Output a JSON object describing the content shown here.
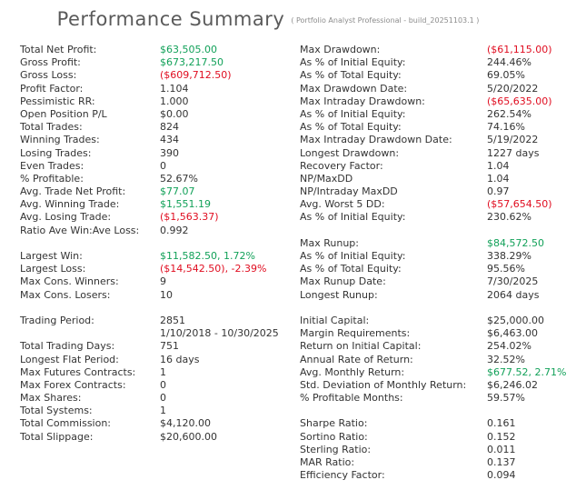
{
  "header": {
    "title": "Performance Summary",
    "subtitle": "( Portfolio Analyst Professional - build_20251103.1 )"
  },
  "colors": {
    "positive": "#12a159",
    "negative": "#e00d20",
    "text": "#333333",
    "title": "#5a5a5a"
  },
  "rows": [
    {
      "l": [
        "Total Net Profit:",
        "$63,505.00",
        "pos"
      ],
      "r": [
        "Max Drawdown:",
        "($61,115.00)",
        "neg"
      ]
    },
    {
      "l": [
        "Gross Profit:",
        "$673,217.50",
        "pos"
      ],
      "r": [
        "As % of Initial Equity:",
        "244.46%"
      ]
    },
    {
      "l": [
        "Gross Loss:",
        "($609,712.50)",
        "neg"
      ],
      "r": [
        "As % of Total Equity:",
        "69.05%"
      ]
    },
    {
      "l": [
        "Profit Factor:",
        "1.104"
      ],
      "r": [
        "Max Drawdown Date:",
        "5/20/2022"
      ]
    },
    {
      "l": [
        "Pessimistic RR:",
        "1.000"
      ],
      "r": [
        "Max Intraday Drawdown:",
        "($65,635.00)",
        "neg"
      ]
    },
    {
      "l": [
        "Open Position P/L",
        "$0.00"
      ],
      "r": [
        "As % of Initial Equity:",
        "262.54%"
      ]
    },
    {
      "l": [
        "Total Trades:",
        "824"
      ],
      "r": [
        "As % of Total Equity:",
        "74.16%"
      ]
    },
    {
      "l": [
        "Winning Trades:",
        "434"
      ],
      "r": [
        "Max Intraday Drawdown Date:",
        "5/19/2022"
      ]
    },
    {
      "l": [
        "Losing Trades:",
        "390"
      ],
      "r": [
        "Longest Drawdown:",
        "1227 days"
      ]
    },
    {
      "l": [
        "Even Trades:",
        "0"
      ],
      "r": [
        "Recovery Factor:",
        "1.04"
      ]
    },
    {
      "l": [
        "% Profitable:",
        "52.67%"
      ],
      "r": [
        "NP/MaxDD",
        "1.04"
      ]
    },
    {
      "l": [
        "Avg. Trade Net Profit:",
        "$77.07",
        "pos"
      ],
      "r": [
        "NP/Intraday MaxDD",
        "0.97"
      ]
    },
    {
      "l": [
        "Avg. Winning Trade:",
        "$1,551.19",
        "pos"
      ],
      "r": [
        "Avg. Worst 5 DD:",
        "($57,654.50)",
        "neg"
      ]
    },
    {
      "l": [
        "Avg. Losing Trade:",
        "($1,563.37)",
        "neg"
      ],
      "r": [
        "As % of Initial Equity:",
        "230.62%"
      ]
    },
    {
      "l": [
        "Ratio Ave Win:Ave Loss:",
        "0.992"
      ],
      "r": [
        "",
        ""
      ]
    },
    {
      "l": [
        "",
        ""
      ],
      "r": [
        "Max Runup:",
        "$84,572.50",
        "pos"
      ]
    },
    {
      "l": [
        "Largest Win:",
        "$11,582.50, 1.72%",
        "pos"
      ],
      "r": [
        "As % of Initial Equity:",
        "338.29%"
      ]
    },
    {
      "l": [
        "Largest Loss:",
        "($14,542.50), -2.39%",
        "neg"
      ],
      "r": [
        "As % of Total Equity:",
        "95.56%"
      ]
    },
    {
      "l": [
        "Max Cons. Winners:",
        "9"
      ],
      "r": [
        "Max Runup Date:",
        "7/30/2025"
      ]
    },
    {
      "l": [
        "Max Cons. Losers:",
        "10"
      ],
      "r": [
        "Longest Runup:",
        "2064 days"
      ]
    },
    {
      "l": [
        "",
        ""
      ],
      "r": [
        "",
        ""
      ]
    },
    {
      "l": [
        "Trading Period:",
        "2851"
      ],
      "r": [
        "Initial Capital:",
        "$25,000.00"
      ]
    },
    {
      "l": [
        "",
        "1/10/2018 - 10/30/2025"
      ],
      "r": [
        "Margin Requirements:",
        "$6,463.00"
      ]
    },
    {
      "l": [
        "Total Trading Days:",
        "751"
      ],
      "r": [
        "Return on Initial Capital:",
        "254.02%"
      ]
    },
    {
      "l": [
        "Longest Flat Period:",
        "16 days"
      ],
      "r": [
        "Annual Rate of Return:",
        "32.52%"
      ]
    },
    {
      "l": [
        "Max Futures Contracts:",
        "1"
      ],
      "r": [
        "Avg. Monthly Return:",
        "$677.52, 2.71%",
        "pos"
      ]
    },
    {
      "l": [
        "Max Forex Contracts:",
        "0"
      ],
      "r": [
        "Std. Deviation of Monthly Return:",
        "$6,246.02"
      ]
    },
    {
      "l": [
        "Max Shares:",
        "0"
      ],
      "r": [
        "% Profitable Months:",
        "59.57%"
      ]
    },
    {
      "l": [
        "Total Systems:",
        "1"
      ],
      "r": [
        "",
        ""
      ]
    },
    {
      "l": [
        "Total Commission:",
        "$4,120.00"
      ],
      "r": [
        "Sharpe Ratio:",
        "0.161"
      ]
    },
    {
      "l": [
        "Total Slippage:",
        "$20,600.00"
      ],
      "r": [
        "Sortino Ratio:",
        "0.152"
      ]
    },
    {
      "l": [
        "",
        ""
      ],
      "r": [
        "Sterling Ratio:",
        "0.011"
      ]
    },
    {
      "l": [
        "",
        ""
      ],
      "r": [
        "MAR Ratio:",
        "0.137"
      ]
    },
    {
      "l": [
        "",
        ""
      ],
      "r": [
        "Efficiency Factor:",
        "0.094"
      ]
    }
  ]
}
